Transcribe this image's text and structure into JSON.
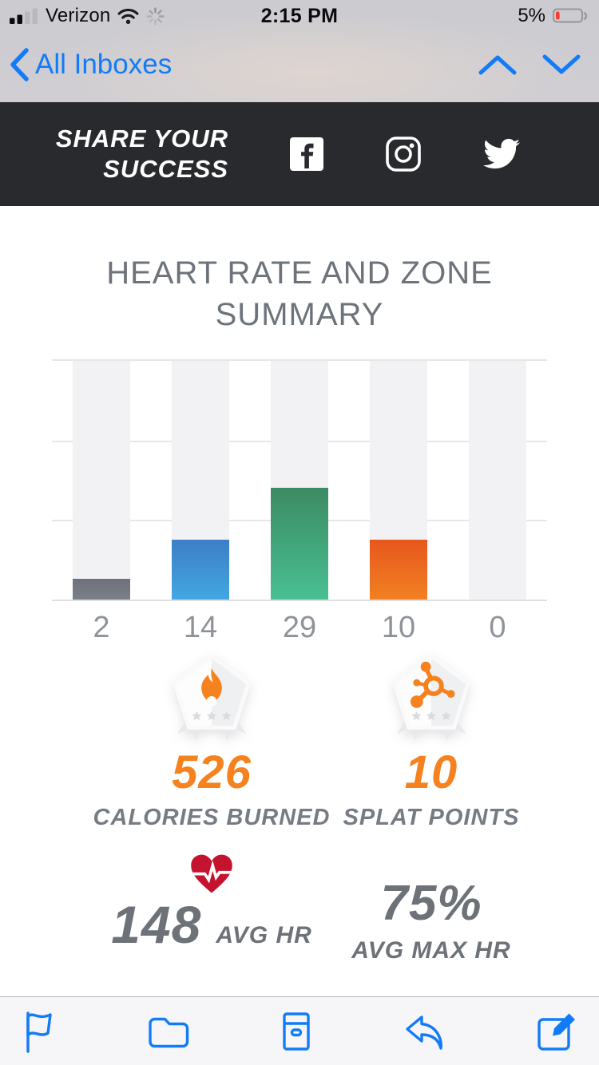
{
  "colors": {
    "accent_orange": "#F5821F",
    "stat_gray": "#6D7278",
    "heart_red": "#C4132E",
    "ios_blue": "#127BF7",
    "header_dark": "#282A2E"
  },
  "status_bar": {
    "carrier": "Verizon",
    "time": "2:15 PM",
    "battery_level": "5%"
  },
  "nav_bar": {
    "back_label": "All Inboxes"
  },
  "share_header": {
    "line1": "SHARE YOUR",
    "line2": "SUCCESS",
    "social_icons": [
      "facebook",
      "instagram",
      "twitter"
    ]
  },
  "summary": {
    "title": "HEART RATE AND ZONE SUMMARY"
  },
  "chart_data": {
    "type": "bar",
    "title": "HEART RATE AND ZONE SUMMARY",
    "categories": [
      "gray-zone",
      "blue-zone",
      "green-zone",
      "orange-zone",
      "red-zone"
    ],
    "values": [
      2,
      14,
      29,
      10,
      0
    ],
    "value_labels": [
      "2",
      "14",
      "29",
      "10",
      "0"
    ],
    "bar_height_pct": [
      8.8,
      25.1,
      46.9,
      25.1,
      0
    ],
    "bar_gradients": [
      [
        "#6c717a",
        "#7a7f88"
      ],
      [
        "#3d7ec7",
        "#42a7e0"
      ],
      [
        "#3c8a63",
        "#48c092"
      ],
      [
        "#e7571e",
        "#f28022"
      ],
      null
    ],
    "track_color": "#f2f2f4",
    "gridline_color": "#e6e6e8",
    "grid": true,
    "legend": false,
    "xlabel": "",
    "ylabel": ""
  },
  "stats": {
    "calories": {
      "value": "526",
      "label": "CALORIES BURNED"
    },
    "splat_points": {
      "value": "10",
      "label": "SPLAT POINTS"
    },
    "avg_hr": {
      "value": "148",
      "label": "AVG HR"
    },
    "avg_max_hr": {
      "value": "75%",
      "label": "AVG MAX HR"
    }
  },
  "toolbar": {
    "icons": [
      "flag",
      "folder",
      "archive",
      "reply",
      "compose"
    ]
  }
}
